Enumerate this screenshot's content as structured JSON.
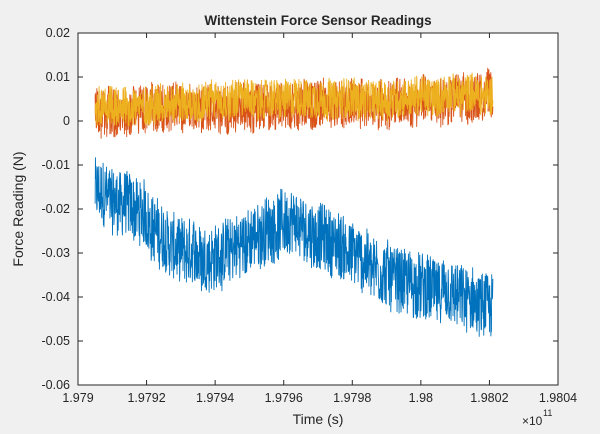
{
  "chart_data": {
    "type": "line",
    "title": "Wittenstein Force Sensor Readings",
    "xlabel": "Time (s)",
    "ylabel": "Force Reading (N)",
    "x_exponent_label": "×10",
    "x_exponent_power": "11",
    "xlim": [
      1.979,
      1.9804
    ],
    "ylim": [
      -0.06,
      0.02
    ],
    "x_ticks": [
      1.979,
      1.9792,
      1.9794,
      1.9796,
      1.9798,
      1.98,
      1.9802,
      1.9804
    ],
    "x_tick_labels": [
      "1.979",
      "1.9792",
      "1.9794",
      "1.9796",
      "1.9798",
      "1.98",
      "1.9802",
      "1.9804"
    ],
    "y_ticks": [
      -0.06,
      -0.05,
      -0.04,
      -0.03,
      -0.02,
      -0.01,
      0,
      0.01,
      0.02
    ],
    "y_tick_labels": [
      "-0.06",
      "-0.05",
      "-0.04",
      "-0.03",
      "-0.02",
      "-0.01",
      "0",
      "0.01",
      "0.02"
    ],
    "grid": false,
    "legend": "none",
    "x_data_range": [
      1.97905,
      1.98021
    ],
    "series": [
      {
        "color": "#0072bd",
        "x": [
          1.97905,
          1.9791,
          1.97915,
          1.9792,
          1.97925,
          1.9793,
          1.9794,
          1.9795,
          1.9796,
          1.9797,
          1.9798,
          1.9799,
          1.98,
          1.9801,
          1.98021
        ],
        "y": [
          -0.016,
          -0.018,
          -0.019,
          -0.022,
          -0.027,
          -0.03,
          -0.031,
          -0.027,
          -0.023,
          -0.026,
          -0.03,
          -0.035,
          -0.038,
          -0.04,
          -0.043
        ],
        "noise_amplitude": 0.0075
      },
      {
        "color": "#d95319",
        "x": [
          1.97905,
          1.9793,
          1.9795,
          1.9797,
          1.9799,
          1.9801,
          1.98021
        ],
        "y": [
          0.002,
          0.003,
          0.003,
          0.004,
          0.004,
          0.005,
          0.006
        ],
        "noise_amplitude": 0.0055
      },
      {
        "color": "#edb120",
        "x": [
          1.97905,
          1.9793,
          1.9795,
          1.9797,
          1.9799,
          1.9801,
          1.98021
        ],
        "y": [
          0.003,
          0.004,
          0.005,
          0.005,
          0.005,
          0.006,
          0.006
        ],
        "noise_amplitude": 0.0045
      }
    ]
  }
}
